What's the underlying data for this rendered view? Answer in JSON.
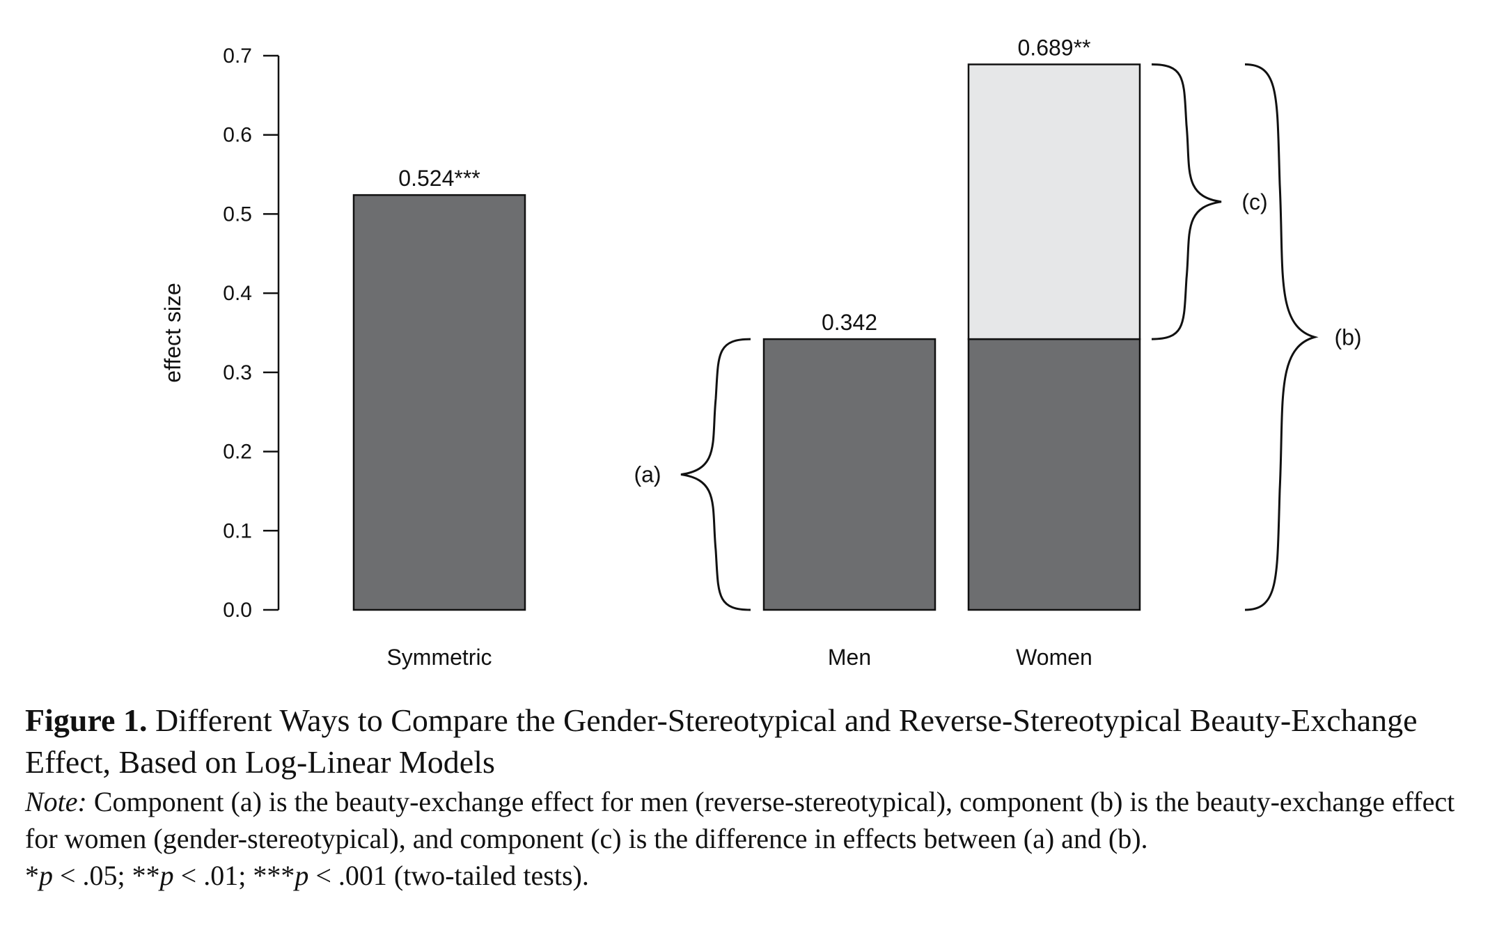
{
  "chart_data": {
    "type": "bar",
    "categories": [
      "Symmetric",
      "Men",
      "Women"
    ],
    "values": [
      0.524,
      0.342,
      0.689
    ],
    "bar_labels": [
      "0.524***",
      "0.342",
      "0.689**"
    ],
    "women_segments": {
      "lower": 0.342,
      "upper_difference": 0.347
    },
    "ylabel": "effect size",
    "ylim": [
      0,
      0.7
    ],
    "yticks": [
      0.0,
      0.1,
      0.2,
      0.3,
      0.4,
      0.5,
      0.6,
      0.7
    ],
    "ytick_labels": [
      "0.0",
      "0.1",
      "0.2",
      "0.3",
      "0.4",
      "0.5",
      "0.6",
      "0.7"
    ],
    "grid": false,
    "colors": {
      "bar": "#6d6e70",
      "difference": "#e6e7e8",
      "outline": "#111111"
    },
    "braces": [
      {
        "label": "(a)",
        "from": 0.0,
        "to": 0.342,
        "side": "left of Men"
      },
      {
        "label": "(c)",
        "from": 0.342,
        "to": 0.689,
        "side": "right of Women"
      },
      {
        "label": "(b)",
        "from": 0.0,
        "to": 0.689,
        "side": "right of Women"
      }
    ]
  },
  "caption": {
    "figure_number": "Figure 1.",
    "title": "Different Ways to Compare the Gender-Stereotypical and Reverse-Stereotypical Beauty-Exchange Effect, Based on Log-Linear Models",
    "note_lead": "Note:",
    "note_text": "Component (a) is the beauty-exchange effect for men (reverse-stereotypical), component (b) is the beauty-exchange effect for women (gender-stereotypical), and component (c) is the difference in effects between (a) and (b).",
    "significance": [
      {
        "stars": "*",
        "p": "p",
        "rest": " < .05; "
      },
      {
        "stars": "**",
        "p": "p",
        "rest": " < .01; "
      },
      {
        "stars": "***",
        "p": "p",
        "rest": " < .001 (two-tailed tests)."
      }
    ]
  }
}
